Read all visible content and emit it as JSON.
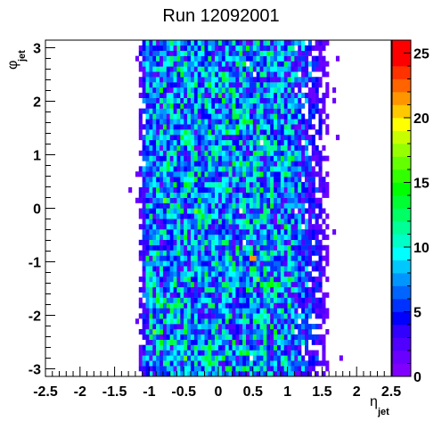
{
  "chart_data": {
    "type": "heatmap",
    "title": "Run 12092001",
    "xlabel": {
      "symbol": "η",
      "sub": "jet"
    },
    "ylabel": {
      "symbol": "φ",
      "sub": "jet"
    },
    "xlim": [
      -2.5,
      2.5
    ],
    "ylim": [
      -3.14159,
      3.14159
    ],
    "x_ticks": [
      "-2.5",
      "-2",
      "-1.5",
      "-1",
      "-0.5",
      "0",
      "0.5",
      "1",
      "1.5",
      "2",
      "2.5"
    ],
    "x_tick_values": [
      -2.5,
      -2,
      -1.5,
      -1,
      -0.5,
      0,
      0.5,
      1,
      1.5,
      2,
      2.5
    ],
    "y_ticks": [
      "-3",
      "-2",
      "-1",
      "0",
      "1",
      "2",
      "3"
    ],
    "y_tick_values": [
      -3,
      -2,
      -1,
      0,
      1,
      2,
      3
    ],
    "colorbar": {
      "min": 0,
      "max": 26,
      "ticks": [
        "0",
        "5",
        "10",
        "15",
        "20",
        "25"
      ],
      "tick_values": [
        0,
        5,
        10,
        15,
        20,
        25
      ],
      "palette": [
        "#8000ff",
        "#6a00ff",
        "#5000ff",
        "#3200ff",
        "#0000ff",
        "#0032ff",
        "#0064ff",
        "#0096ff",
        "#00c8ff",
        "#00ffff",
        "#00ffc8",
        "#00ff96",
        "#00ff64",
        "#00ff32",
        "#00ff00",
        "#32ff00",
        "#64ff00",
        "#96ff00",
        "#c8ff00",
        "#ffff00",
        "#ffc800",
        "#ff9600",
        "#ff6400",
        "#ff3200",
        "#ff0000",
        "#ff0000"
      ]
    },
    "binning": {
      "x_bins": 100,
      "y_bins": 64
    },
    "distribution": {
      "eta_core": [
        -1.0,
        1.0
      ],
      "eta_tail_edges": [
        -1.15,
        1.6
      ],
      "peak_count_core": 7,
      "hot_spots": [
        {
          "eta": 0.5,
          "phi": -0.9,
          "count": 24
        },
        {
          "eta": -0.4,
          "phi": 0.6,
          "count": 14
        },
        {
          "eta": 0.0,
          "phi": 0.4,
          "count": 13
        },
        {
          "eta": 0.6,
          "phi": 1.8,
          "count": 12
        }
      ]
    }
  }
}
